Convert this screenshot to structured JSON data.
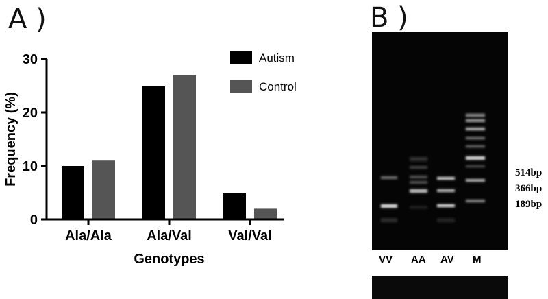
{
  "panels": {
    "a_label": "A )",
    "b_label": "B )"
  },
  "chart_data": {
    "type": "bar",
    "title": "",
    "xlabel": "Genotypes",
    "ylabel": "Frequency (%)",
    "ylim": [
      0,
      30
    ],
    "yticks": [
      "0",
      "10",
      "20",
      "30"
    ],
    "categories": [
      "Ala/Ala",
      "Ala/Val",
      "Val/Val"
    ],
    "series": [
      {
        "name": "Autism",
        "values": [
          10,
          25,
          5
        ],
        "color": "#000000"
      },
      {
        "name": "Control",
        "values": [
          11,
          27,
          2
        ],
        "color": "#555555"
      }
    ],
    "legend_position": "top-right",
    "grid": false
  },
  "gel": {
    "lanes": [
      "VV",
      "AA",
      "AV",
      "M"
    ],
    "band_sizes": [
      "514bp",
      "366bp",
      "189bp"
    ]
  }
}
